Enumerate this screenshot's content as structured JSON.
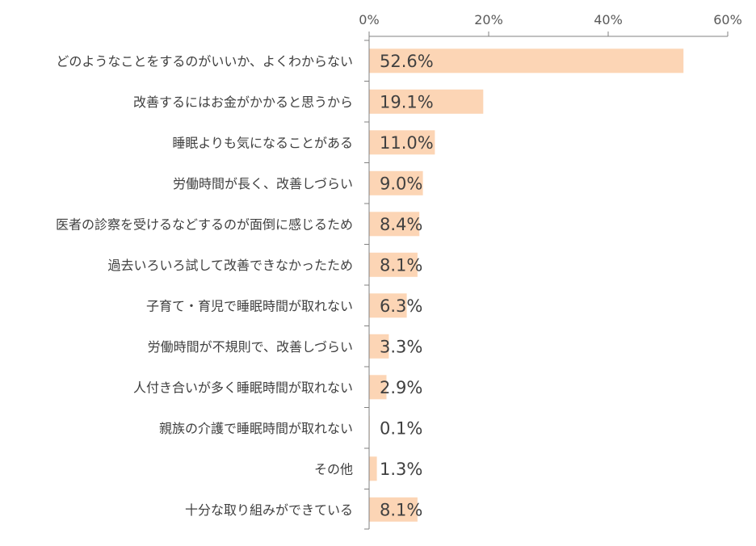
{
  "chart_data": {
    "type": "bar",
    "orientation": "horizontal",
    "categories": [
      "どのようなことをするのがいいか、よくわからない",
      "改善するにはお金がかかると思うから",
      "睡眠よりも気になることがある",
      "労働時間が長く、改善しづらい",
      "医者の診察を受けるなどするのが面倒に感じるため",
      "過去いろいろ試して改善できなかったため",
      "子育て・育児で睡眠時間が取れない",
      "労働時間が不規則で、改善しづらい",
      "人付き合いが多く睡眠時間が取れない",
      "親族の介護で睡眠時間が取れない",
      "その他",
      "十分な取り組みができている"
    ],
    "values": [
      52.6,
      19.1,
      11.0,
      9.0,
      8.4,
      8.1,
      6.3,
      3.3,
      2.9,
      0.1,
      1.3,
      8.1
    ],
    "data_labels": [
      "52.6%",
      "19.1%",
      "11.0%",
      "9.0%",
      "8.4%",
      "8.1%",
      "6.3%",
      "3.3%",
      "2.9%",
      "0.1%",
      "1.3%",
      "8.1%"
    ],
    "x_ticks": [
      0,
      20,
      40,
      60
    ],
    "x_tick_labels": [
      "0%",
      "20%",
      "40%",
      "60%"
    ],
    "xlim": [
      0,
      60
    ],
    "axis_position": "top",
    "grid": false,
    "bar_color": "#FCD5B5",
    "axis_color": "#808080"
  }
}
